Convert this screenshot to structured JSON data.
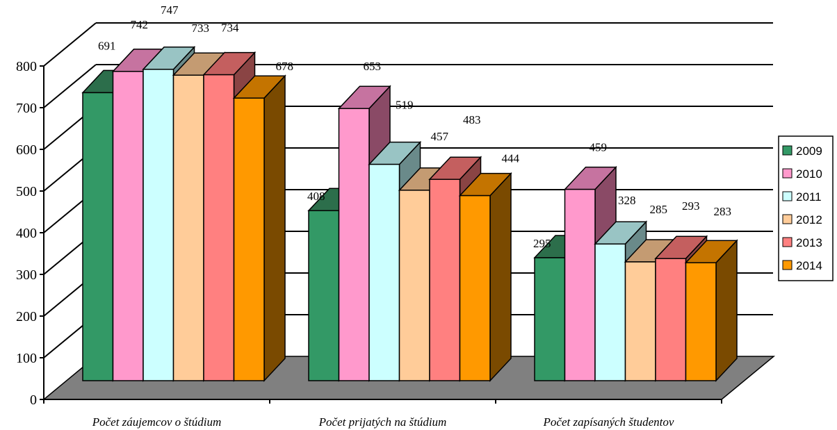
{
  "chart_data": {
    "type": "bar",
    "title": "",
    "xlabel": "",
    "ylabel": "",
    "ylim": [
      0,
      800
    ],
    "yticks": [
      0,
      100,
      200,
      300,
      400,
      500,
      600,
      700,
      800
    ],
    "categories": [
      "Počet záujemcov o štúdium",
      "Počet prijatých na štúdium",
      "Počet zapísaných študentov"
    ],
    "series": [
      {
        "name": "2009",
        "values": [
          691,
          408,
          295
        ],
        "front": "#339966",
        "top": "#2c6e4b",
        "side": "#1f5a3a"
      },
      {
        "name": "2010",
        "values": [
          742,
          653,
          459
        ],
        "front": "#ff99cc",
        "top": "#c673a0",
        "side": "#8a4a66"
      },
      {
        "name": "2011",
        "values": [
          747,
          519,
          328
        ],
        "front": "#ccffff",
        "top": "#99c4c4",
        "side": "#6a8a8a"
      },
      {
        "name": "2012",
        "values": [
          733,
          457,
          285
        ],
        "front": "#ffcc99",
        "top": "#c49b72",
        "side": "#8a6e4e"
      },
      {
        "name": "2013",
        "values": [
          734,
          483,
          293
        ],
        "front": "#ff8080",
        "top": "#c45f5f",
        "side": "#8a4444"
      },
      {
        "name": "2014",
        "values": [
          678,
          444,
          283
        ],
        "front": "#ff9900",
        "top": "#c47400",
        "side": "#7a4a00"
      }
    ],
    "grid": true,
    "legend": "right",
    "three_d": true,
    "floor_color": "#808080"
  }
}
